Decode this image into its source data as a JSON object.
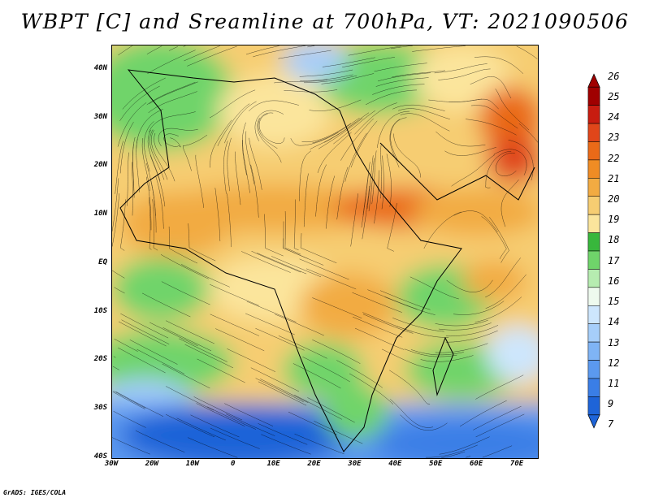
{
  "title": "WBPT [C] and Sreamline at 700hPa, VT: 2021090506",
  "footer": "GrADS: IGES/COLA",
  "map": {
    "lat_labels": [
      "40N",
      "30N",
      "20N",
      "10N",
      "EQ",
      "10S",
      "20S",
      "30S",
      "40S"
    ],
    "lat_values": [
      40,
      30,
      20,
      10,
      0,
      -10,
      -20,
      -30,
      -40
    ],
    "lon_labels": [
      "30W",
      "20W",
      "10W",
      "0",
      "10E",
      "20E",
      "30E",
      "40E",
      "50E",
      "60E",
      "70E"
    ],
    "lon_values": [
      -30,
      -20,
      -10,
      0,
      10,
      20,
      30,
      40,
      50,
      60,
      70
    ],
    "lat_range": [
      -40,
      45
    ],
    "lon_range": [
      -30,
      75
    ]
  },
  "colorbar": {
    "labels": [
      "7",
      "9",
      "11",
      "12",
      "13",
      "14",
      "15",
      "16",
      "17",
      "18",
      "19",
      "20",
      "21",
      "22",
      "23",
      "24",
      "25",
      "26"
    ],
    "colors": [
      "#1e64d8",
      "#3a7ee6",
      "#5b99ef",
      "#7fb4f5",
      "#a6cefa",
      "#cde6fd",
      "#eefaee",
      "#b6ecb0",
      "#6fd46a",
      "#38b73c",
      "#fbe59c",
      "#f6cd72",
      "#f2ab42",
      "#ef8c24",
      "#ea6a18",
      "#e0461a",
      "#c81c10",
      "#a00000"
    ]
  }
}
